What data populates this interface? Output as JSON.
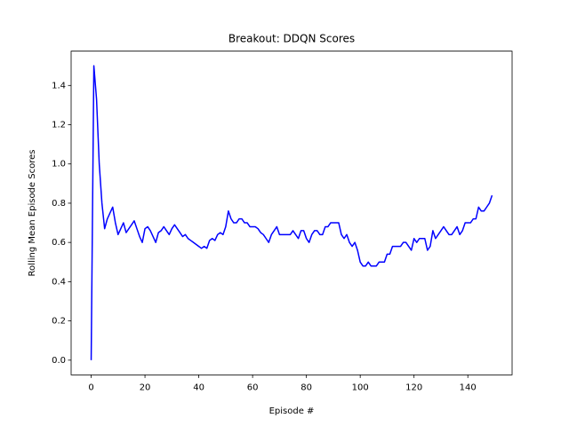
{
  "chart_data": {
    "type": "line",
    "title": "Breakout: DDQN Scores",
    "xlabel": "Episode #",
    "ylabel": "Rolling Mean Episode Scores",
    "x": [
      0,
      1,
      2,
      3,
      4,
      5,
      6,
      7,
      8,
      9,
      10,
      11,
      12,
      13,
      14,
      15,
      16,
      17,
      18,
      19,
      20,
      21,
      22,
      23,
      24,
      25,
      26,
      27,
      28,
      29,
      30,
      31,
      32,
      33,
      34,
      35,
      36,
      37,
      38,
      39,
      40,
      41,
      42,
      43,
      44,
      45,
      46,
      47,
      48,
      49,
      50,
      51,
      52,
      53,
      54,
      55,
      56,
      57,
      58,
      59,
      60,
      61,
      62,
      63,
      64,
      65,
      66,
      67,
      68,
      69,
      70,
      71,
      72,
      73,
      74,
      75,
      76,
      77,
      78,
      79,
      80,
      81,
      82,
      83,
      84,
      85,
      86,
      87,
      88,
      89,
      90,
      91,
      92,
      93,
      94,
      95,
      96,
      97,
      98,
      99,
      100,
      101,
      102,
      103,
      104,
      105,
      106,
      107,
      108,
      109,
      110,
      111,
      112,
      113,
      114,
      115,
      116,
      117,
      118,
      119,
      120,
      121,
      122,
      123,
      124,
      125,
      126,
      127,
      128,
      129,
      130,
      131,
      132,
      133,
      134,
      135,
      136,
      137,
      138,
      139,
      140,
      141,
      142,
      143,
      144,
      145,
      146,
      147,
      148,
      149
    ],
    "series": [
      {
        "color": "#0000ff",
        "values": [
          0.0,
          1.5,
          1.33,
          1.0,
          0.8,
          0.67,
          0.72,
          0.75,
          0.78,
          0.7,
          0.64,
          0.67,
          0.7,
          0.65,
          0.67,
          0.69,
          0.71,
          0.67,
          0.63,
          0.6,
          0.67,
          0.68,
          0.66,
          0.63,
          0.6,
          0.65,
          0.66,
          0.68,
          0.66,
          0.64,
          0.67,
          0.69,
          0.67,
          0.65,
          0.63,
          0.64,
          0.62,
          0.61,
          0.6,
          0.59,
          0.58,
          0.57,
          0.58,
          0.57,
          0.61,
          0.62,
          0.61,
          0.64,
          0.65,
          0.64,
          0.68,
          0.76,
          0.72,
          0.7,
          0.7,
          0.72,
          0.72,
          0.7,
          0.7,
          0.68,
          0.68,
          0.68,
          0.67,
          0.65,
          0.64,
          0.62,
          0.6,
          0.64,
          0.66,
          0.68,
          0.64,
          0.64,
          0.64,
          0.64,
          0.64,
          0.66,
          0.64,
          0.62,
          0.66,
          0.66,
          0.62,
          0.6,
          0.64,
          0.66,
          0.66,
          0.64,
          0.64,
          0.68,
          0.68,
          0.7,
          0.7,
          0.7,
          0.7,
          0.64,
          0.62,
          0.64,
          0.6,
          0.58,
          0.6,
          0.56,
          0.5,
          0.48,
          0.48,
          0.5,
          0.48,
          0.48,
          0.48,
          0.5,
          0.5,
          0.5,
          0.54,
          0.54,
          0.58,
          0.58,
          0.58,
          0.58,
          0.6,
          0.6,
          0.58,
          0.56,
          0.62,
          0.6,
          0.62,
          0.62,
          0.62,
          0.56,
          0.58,
          0.66,
          0.62,
          0.64,
          0.66,
          0.68,
          0.66,
          0.64,
          0.64,
          0.66,
          0.68,
          0.64,
          0.66,
          0.7,
          0.7,
          0.7,
          0.72,
          0.72,
          0.78,
          0.76,
          0.76,
          0.78,
          0.8,
          0.84
        ]
      }
    ],
    "xlim": [
      -7.45,
      156.45
    ],
    "xticks": [
      0,
      20,
      40,
      60,
      80,
      100,
      120,
      140
    ],
    "ylim": [
      -0.075,
      1.575
    ],
    "yticks": [
      {
        "value": 0,
        "label": "0.0"
      },
      0.2,
      0.4,
      0.6,
      0.8,
      {
        "value": 1,
        "label": "1.0"
      },
      1.2,
      1.4
    ]
  }
}
